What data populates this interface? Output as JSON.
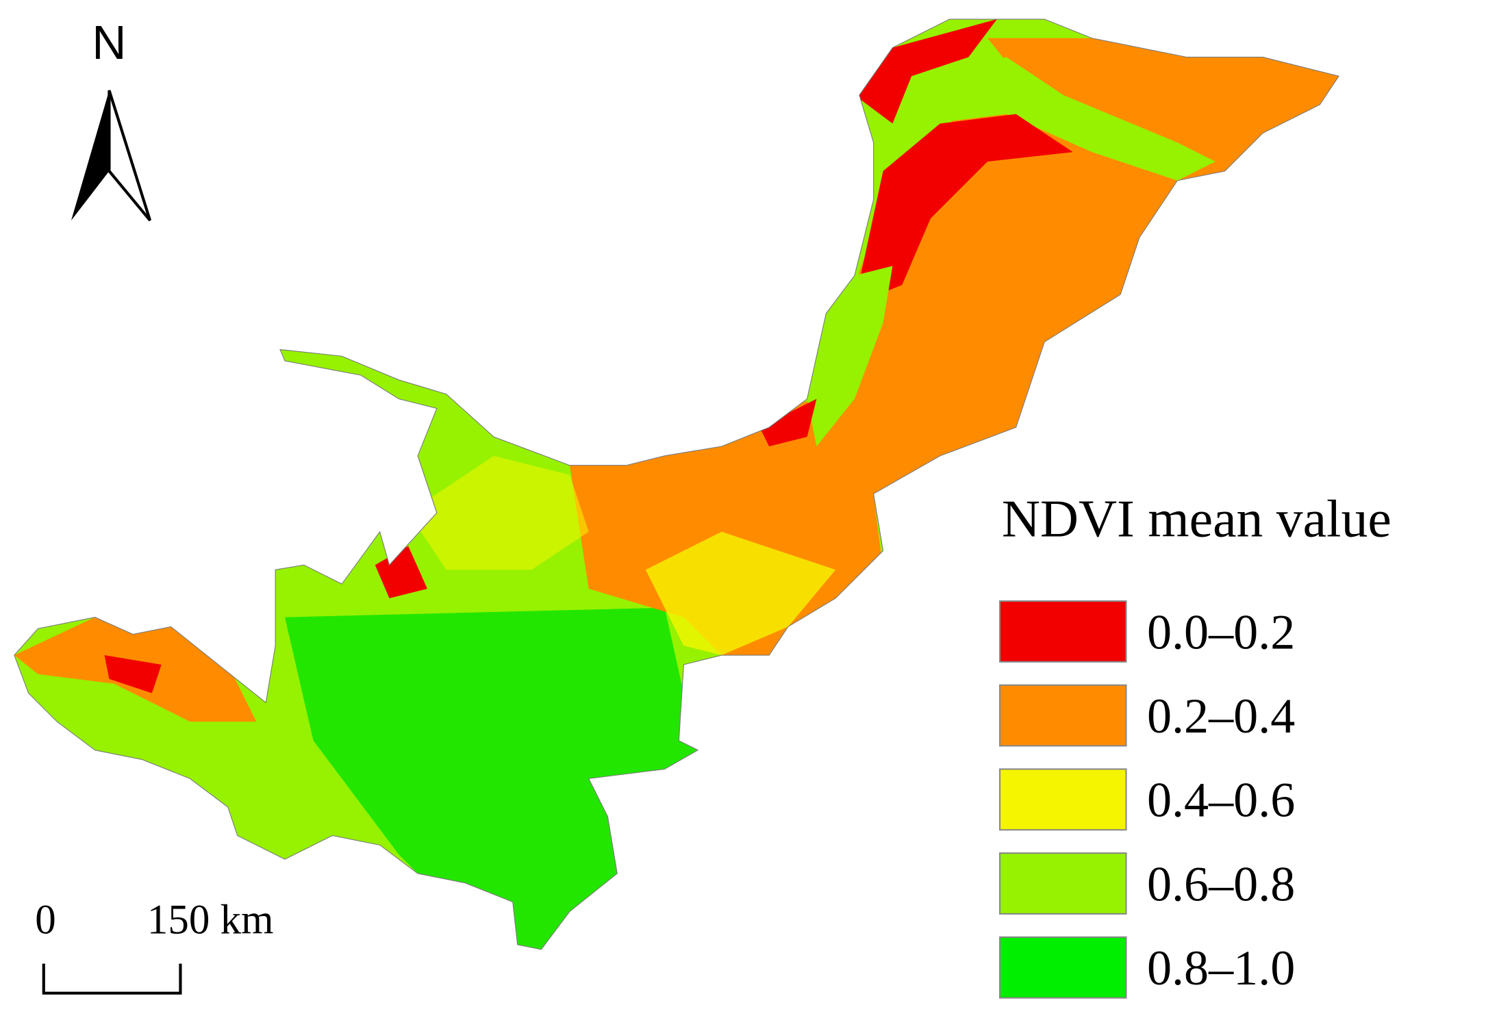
{
  "north_arrow": {
    "label": "N"
  },
  "scale_bar": {
    "start_label": "0",
    "end_label": "150 km"
  },
  "legend": {
    "title": "NDVI mean value",
    "items": [
      {
        "label": "0.0–0.2",
        "color": "#f20000"
      },
      {
        "label": "0.2–0.4",
        "color": "#ff8c00"
      },
      {
        "label": "0.4–0.6",
        "color": "#f5f500"
      },
      {
        "label": "0.6–0.8",
        "color": "#96f200"
      },
      {
        "label": "0.8–1.0",
        "color": "#00ee00"
      }
    ]
  }
}
